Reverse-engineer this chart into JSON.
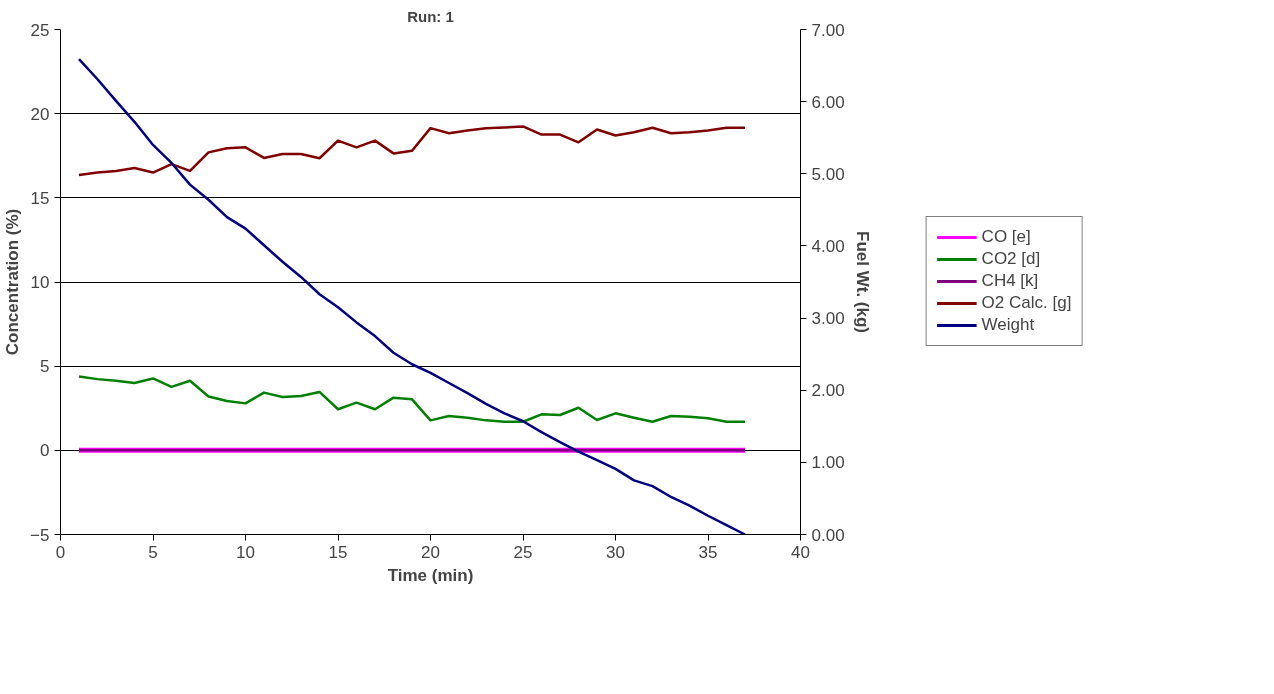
{
  "chart_data": {
    "type": "line",
    "title": "Run: 1",
    "xlabel": "Time (min)",
    "ylabel": "Concentration (%)",
    "y2label": "Fuel Wt. (kg)",
    "x": [
      1,
      2,
      3,
      4,
      5,
      6,
      7,
      8,
      9,
      10,
      11,
      12,
      13,
      14,
      15,
      16,
      17,
      18,
      19,
      20,
      21,
      22,
      23,
      24,
      25,
      26,
      27,
      28,
      29,
      30,
      31,
      32,
      33,
      34,
      35,
      36,
      37
    ],
    "series": [
      {
        "name": "CO [e]",
        "color": "#ff00ff",
        "values": [
          0,
          0,
          0,
          0,
          0,
          0,
          0,
          0,
          0,
          0,
          0,
          0,
          0,
          0,
          0,
          0,
          0,
          0,
          0,
          0,
          0,
          0,
          0,
          0,
          0,
          0,
          0,
          0,
          0,
          0,
          0,
          0,
          0,
          0,
          0,
          0,
          0
        ]
      },
      {
        "name": "CO2 [d]",
        "color": "#008000",
        "values": [
          4.39,
          4.23,
          4.13,
          4.0,
          4.27,
          3.77,
          4.13,
          3.2,
          2.93,
          2.79,
          3.43,
          3.17,
          3.23,
          3.47,
          2.44,
          2.83,
          2.44,
          3.13,
          3.03,
          1.78,
          2.04,
          1.94,
          1.78,
          1.7,
          1.7,
          2.14,
          2.1,
          2.53,
          1.8,
          2.2,
          1.94,
          1.7,
          2.04,
          2.0,
          1.9,
          1.7,
          1.7
        ]
      },
      {
        "name": "CH4 [k]",
        "color": "#800080",
        "values": [
          0,
          0,
          0,
          0,
          0,
          0,
          0,
          0,
          0,
          0,
          0,
          0,
          0,
          0,
          0,
          0,
          0,
          0,
          0,
          0,
          0,
          0,
          0,
          0,
          0,
          0,
          0,
          0,
          0,
          0,
          0,
          0,
          0,
          0,
          0,
          0,
          0
        ]
      },
      {
        "name": "O2 Calc. [g]",
        "color": "#800000",
        "values": [
          16.35,
          16.5,
          16.6,
          16.77,
          16.5,
          17.0,
          16.6,
          17.7,
          17.94,
          18.0,
          17.37,
          17.6,
          17.6,
          17.35,
          18.4,
          18.0,
          18.4,
          17.64,
          17.8,
          19.14,
          18.84,
          19.0,
          19.14,
          19.18,
          19.24,
          18.76,
          18.76,
          18.3,
          19.06,
          18.7,
          18.9,
          19.16,
          18.84,
          18.9,
          19.0,
          19.16,
          19.16
        ]
      },
      {
        "name": "Weight",
        "color": "#000080",
        "axis": "y2",
        "values": [
          6.59,
          6.31,
          6.01,
          5.72,
          5.4,
          5.15,
          4.85,
          4.64,
          4.4,
          4.24,
          4.01,
          3.78,
          3.57,
          3.33,
          3.15,
          2.94,
          2.75,
          2.52,
          2.36,
          2.24,
          2.1,
          1.96,
          1.81,
          1.68,
          1.57,
          1.42,
          1.28,
          1.15,
          1.03,
          0.91,
          0.75,
          0.67,
          0.52,
          0.4,
          0.26,
          0.13,
          0.0
        ]
      }
    ],
    "xlim": [
      0,
      40
    ],
    "xticks": [
      0,
      5,
      10,
      15,
      20,
      25,
      30,
      35,
      40
    ],
    "ylim": [
      -5,
      25
    ],
    "yticks": [
      -5,
      0,
      5,
      10,
      15,
      20,
      25
    ],
    "y2lim": [
      0,
      7
    ],
    "y2ticks": [
      {
        "value": 0,
        "label": "0.00"
      },
      {
        "value": 1,
        "label": "1.00"
      },
      {
        "value": 2,
        "label": "2.00"
      },
      {
        "value": 3,
        "label": "3.00"
      },
      {
        "value": 4,
        "label": "4.00"
      },
      {
        "value": 5,
        "label": "5.00"
      },
      {
        "value": 6,
        "label": "6.00"
      },
      {
        "value": 7,
        "label": "7.00"
      }
    ],
    "grid": "y",
    "legend": "right",
    "marker": "none",
    "line_style": "solid"
  }
}
